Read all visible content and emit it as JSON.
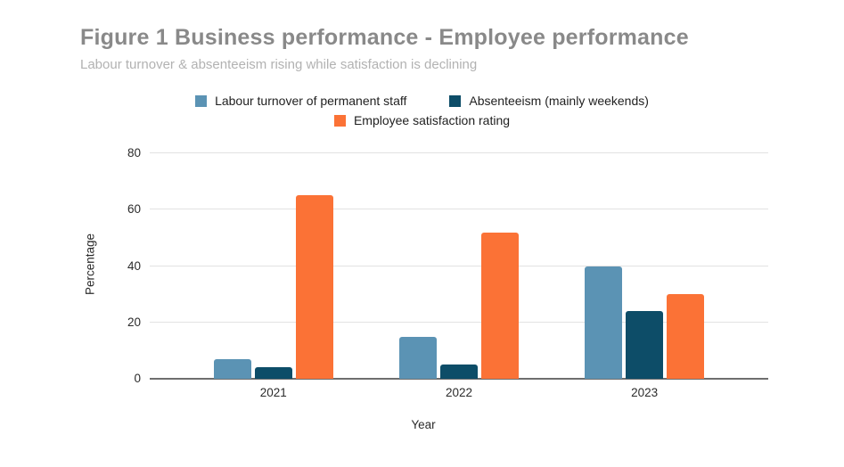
{
  "chart": {
    "title": "Figure 1 Business performance - Employee performance",
    "subtitle": "Labour turnover & absenteeism rising while satisfaction is declining",
    "xlabel": "Year",
    "ylabel": "Percentage"
  },
  "colors": {
    "title_text": "#898989",
    "subtitle_text": "#b2b2b2",
    "axis_text": "#2b2b2b",
    "gridline": "#e2e2e2",
    "axis_line": "#6e6e6e",
    "background": "#ffffff"
  },
  "chart_data": {
    "type": "bar",
    "title": "Figure 1 Business performance - Employee performance",
    "subtitle": "Labour turnover & absenteeism rising while satisfaction is declining",
    "categories": [
      "2021",
      "2022",
      "2023"
    ],
    "series": [
      {
        "name": "Labour turnover of permanent staff",
        "color": "#5b93b4",
        "values": [
          7,
          15,
          40
        ]
      },
      {
        "name": "Absenteeism (mainly weekends)",
        "color": "#0d4d68",
        "values": [
          4,
          5,
          24
        ]
      },
      {
        "name": "Employee satisfaction rating",
        "color": "#fb7236",
        "values": [
          65,
          52,
          30
        ]
      }
    ],
    "xlabel": "Year",
    "ylabel": "Percentage",
    "ylim": [
      0,
      80
    ],
    "yticks": [
      0,
      20,
      40,
      60,
      80
    ],
    "grid": true,
    "legend_position": "top",
    "legend_rows": [
      [
        0,
        1
      ],
      [
        2
      ]
    ]
  }
}
